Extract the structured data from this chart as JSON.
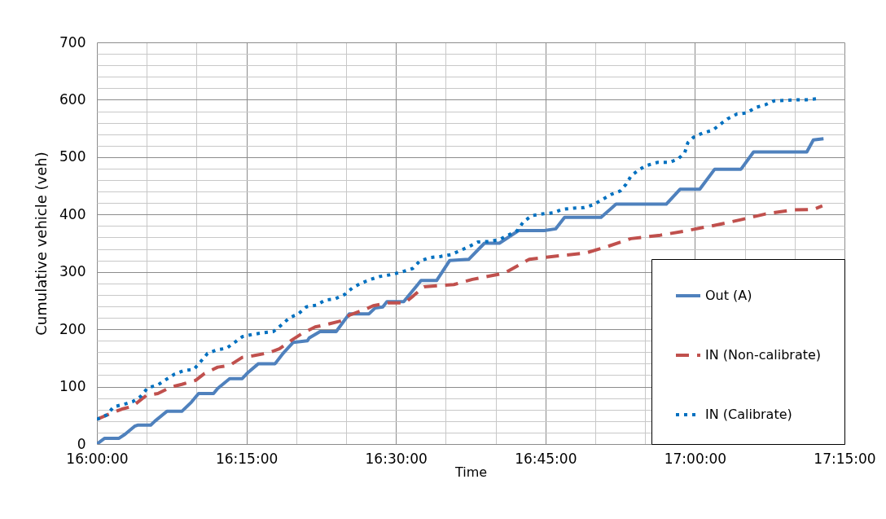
{
  "chart_data": {
    "type": "line",
    "xlabel": "Time",
    "ylabel": "Cumulative vehicle (veh)",
    "xlim": [
      16,
      17.25
    ],
    "xticks": [
      {
        "value": 16,
        "label": "16:00:00"
      },
      {
        "value": 16.0833,
        "label": null
      },
      {
        "value": 16.1667,
        "label": null
      },
      {
        "value": 16.25,
        "label": "16:15:00"
      },
      {
        "value": 16.3333,
        "label": null
      },
      {
        "value": 16.4167,
        "label": null
      },
      {
        "value": 16.5,
        "label": "16:30:00"
      },
      {
        "value": 16.5833,
        "label": null
      },
      {
        "value": 16.6667,
        "label": null
      },
      {
        "value": 16.75,
        "label": "16:45:00"
      },
      {
        "value": 16.8333,
        "label": null
      },
      {
        "value": 16.9167,
        "label": null
      },
      {
        "value": 17,
        "label": "17:00:00"
      },
      {
        "value": 17.0833,
        "label": null
      },
      {
        "value": 17.1667,
        "label": null
      },
      {
        "value": 17.25,
        "label": "17:15:00"
      }
    ],
    "ylim": [
      0,
      700
    ],
    "yticks": [
      0,
      {
        "value": 20,
        "label": null
      },
      {
        "value": 40,
        "label": null
      },
      {
        "value": 60,
        "label": null
      },
      {
        "value": 80,
        "label": null
      },
      100,
      {
        "value": 120,
        "label": null
      },
      {
        "value": 140,
        "label": null
      },
      {
        "value": 160,
        "label": null
      },
      {
        "value": 180,
        "label": null
      },
      200,
      {
        "value": 220,
        "label": null
      },
      {
        "value": 240,
        "label": null
      },
      {
        "value": 260,
        "label": null
      },
      {
        "value": 280,
        "label": null
      },
      300,
      {
        "value": 320,
        "label": null
      },
      {
        "value": 340,
        "label": null
      },
      {
        "value": 360,
        "label": null
      },
      {
        "value": 380,
        "label": null
      },
      400,
      {
        "value": 420,
        "label": null
      },
      {
        "value": 440,
        "label": null
      },
      {
        "value": 460,
        "label": null
      },
      {
        "value": 480,
        "label": null
      },
      500,
      {
        "value": 520,
        "label": null
      },
      {
        "value": 540,
        "label": null
      },
      {
        "value": 560,
        "label": null
      },
      {
        "value": 580,
        "label": null
      },
      600,
      {
        "value": 620,
        "label": null
      },
      {
        "value": 640,
        "label": null
      },
      {
        "value": 660,
        "label": null
      },
      {
        "value": 680,
        "label": null
      },
      700
    ],
    "grid": true,
    "legend": "bottom right",
    "series": [
      {
        "name": "Out (A)",
        "color": "#4f81bd",
        "line_style": "solid",
        "x": [
          16.0,
          16.013,
          16.037,
          16.047,
          16.063,
          16.068,
          16.09,
          16.097,
          16.117,
          16.142,
          16.158,
          16.17,
          16.195,
          16.202,
          16.222,
          16.243,
          16.253,
          16.27,
          16.298,
          16.312,
          16.328,
          16.352,
          16.355,
          16.373,
          16.4,
          16.422,
          16.455,
          16.465,
          16.478,
          16.485,
          16.513,
          16.542,
          16.568,
          16.59,
          16.622,
          16.648,
          16.673,
          16.705,
          16.748,
          16.767,
          16.782,
          16.843,
          16.868,
          16.952,
          16.975,
          17.008,
          17.033,
          17.077,
          17.098,
          17.187,
          17.198,
          17.215
        ],
        "values": [
          0,
          10,
          10,
          17,
          31,
          33,
          33,
          40,
          57,
          57,
          73,
          88,
          88,
          97,
          114,
          114,
          125,
          140,
          140,
          159,
          177,
          180,
          185,
          196,
          196,
          227,
          227,
          237,
          239,
          248,
          248,
          285,
          285,
          320,
          322,
          350,
          350,
          372,
          372,
          375,
          395,
          395,
          418,
          418,
          444,
          444,
          479,
          479,
          509,
          509,
          530,
          532
        ]
      },
      {
        "name": "IN (Non-calibrate)",
        "color": "#c0504d",
        "line_style": "dashed",
        "x": [
          16.0,
          16.02,
          16.042,
          16.06,
          16.083,
          16.102,
          16.123,
          16.142,
          16.165,
          16.18,
          16.202,
          16.222,
          16.243,
          16.262,
          16.287,
          16.305,
          16.327,
          16.342,
          16.365,
          16.383,
          16.41,
          16.423,
          16.447,
          16.462,
          16.487,
          16.515,
          16.547,
          16.597,
          16.628,
          16.682,
          16.723,
          16.772,
          16.818,
          16.853,
          16.893,
          16.942,
          16.982,
          17.032,
          17.077,
          17.118,
          17.163,
          17.198,
          17.213
        ],
        "values": [
          43,
          52,
          61,
          66,
          85,
          88,
          99,
          104,
          111,
          123,
          134,
          137,
          151,
          154,
          159,
          166,
          182,
          192,
          204,
          208,
          215,
          225,
          234,
          241,
          246,
          246,
          274,
          278,
          287,
          298,
          322,
          328,
          333,
          344,
          358,
          364,
          371,
          381,
          391,
          401,
          408,
          409,
          415
        ]
      },
      {
        "name": "IN (Calibrate)",
        "color": "#0070c0",
        "line_style": "dotted",
        "x": [
          16.0,
          16.017,
          16.028,
          16.045,
          16.06,
          16.073,
          16.085,
          16.102,
          16.115,
          16.13,
          16.145,
          16.162,
          16.173,
          16.185,
          16.2,
          16.217,
          16.23,
          16.243,
          16.26,
          16.278,
          16.295,
          16.308,
          16.322,
          16.337,
          16.35,
          16.367,
          16.382,
          16.398,
          16.415,
          16.427,
          16.443,
          16.458,
          16.473,
          16.49,
          16.507,
          16.528,
          16.54,
          16.557,
          16.575,
          16.592,
          16.607,
          16.622,
          16.637,
          16.655,
          16.672,
          16.688,
          16.703,
          16.713,
          16.727,
          16.745,
          16.763,
          16.778,
          16.797,
          16.815,
          16.83,
          16.845,
          16.86,
          16.875,
          16.885,
          16.893,
          16.905,
          16.918,
          16.938,
          16.958,
          16.972,
          16.983,
          16.988,
          16.998,
          17.013,
          17.03,
          17.042,
          17.055,
          17.07,
          17.087,
          17.1,
          17.117,
          17.132,
          17.15,
          17.168,
          17.187,
          17.205
        ],
        "values": [
          43,
          51,
          65,
          69,
          74,
          83,
          98,
          103,
          112,
          122,
          128,
          130,
          143,
          158,
          164,
          167,
          177,
          187,
          191,
          194,
          196,
          207,
          220,
          227,
          239,
          242,
          251,
          253,
          261,
          272,
          281,
          287,
          292,
          295,
          299,
          306,
          319,
          325,
          327,
          330,
          337,
          344,
          352,
          353,
          356,
          364,
          372,
          387,
          398,
          401,
          403,
          409,
          411,
          412,
          417,
          426,
          435,
          441,
          453,
          467,
          477,
          485,
          491,
          491,
          497,
          508,
          525,
          535,
          542,
          547,
          557,
          567,
          575,
          577,
          586,
          591,
          598,
          599,
          600,
          600,
          602
        ]
      }
    ]
  }
}
